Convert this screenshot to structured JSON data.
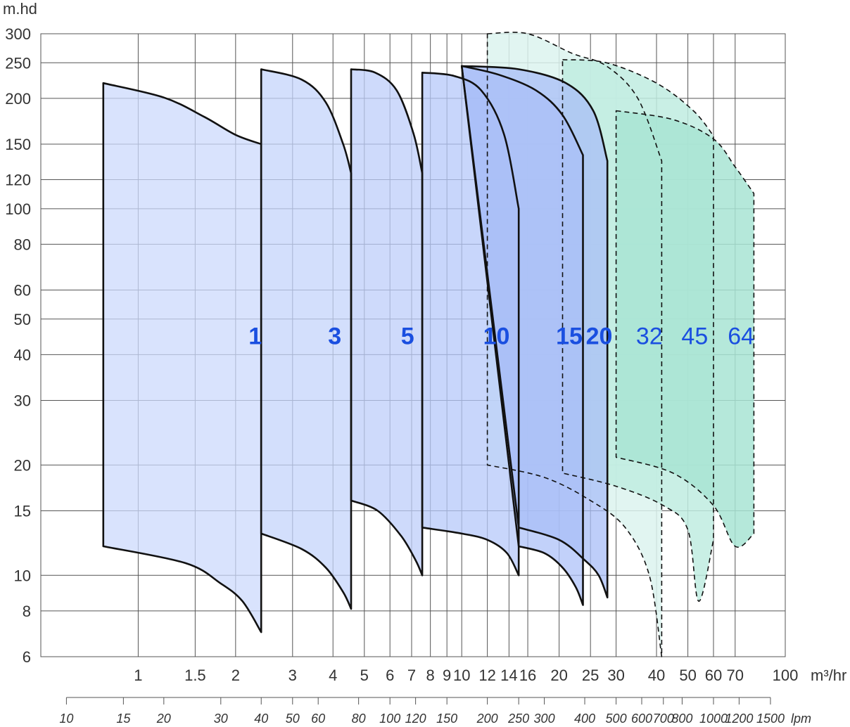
{
  "chart_data": {
    "type": "area",
    "y_unit_label": "m.hd",
    "x_unit_label": "m³/hr",
    "x2_unit_label": "lpm",
    "y_scale": "log",
    "x_scale": "log",
    "ylim": [
      6,
      300
    ],
    "xlim": [
      0.5,
      100
    ],
    "y_ticks": [
      6,
      8,
      10,
      15,
      20,
      30,
      40,
      50,
      60,
      80,
      100,
      120,
      150,
      200,
      250,
      300
    ],
    "x_ticks": [
      1,
      1.5,
      2,
      3,
      4,
      5,
      6,
      7,
      8,
      9,
      10,
      12,
      14,
      16,
      20,
      25,
      30,
      40,
      50,
      60,
      70,
      100
    ],
    "x_tick_labels": [
      "1",
      "1.5",
      "2",
      "3",
      "4",
      "5",
      "6",
      "7",
      "8",
      "9",
      "10",
      "12",
      "14",
      "16",
      "20",
      "25",
      "30",
      "40",
      "50",
      "60",
      "70",
      "100"
    ],
    "x2_ticks": [
      10,
      15,
      20,
      30,
      40,
      50,
      60,
      80,
      100,
      120,
      150,
      200,
      250,
      300,
      400,
      500,
      600,
      700,
      800,
      1000,
      1200,
      1500
    ],
    "x2_tick_labels": [
      "10",
      "15",
      "20",
      "30",
      "40",
      "50",
      "60",
      "80",
      "100",
      "120",
      "150",
      "200",
      "250",
      "300",
      "400",
      "500",
      "600",
      "700",
      "800",
      "1000",
      "1200",
      "1500"
    ],
    "grid": true,
    "series": [
      {
        "name": "1",
        "style": "solid",
        "color": "#ccdafc",
        "label_pos": [
          2.3,
          45
        ],
        "top": [
          [
            0.78,
            220
          ],
          [
            1.2,
            201
          ],
          [
            1.6,
            178
          ],
          [
            2.0,
            159
          ],
          [
            2.4,
            150
          ]
        ],
        "bottom": [
          [
            0.78,
            12
          ],
          [
            1.4,
            10.8
          ],
          [
            1.8,
            9.5
          ],
          [
            2.1,
            8.5
          ],
          [
            2.4,
            7
          ]
        ]
      },
      {
        "name": "3",
        "style": "solid",
        "color": "#c4d4fb",
        "label_pos": [
          4.05,
          45
        ],
        "top": [
          [
            2.4,
            240
          ],
          [
            3.2,
            225
          ],
          [
            3.8,
            195
          ],
          [
            4.3,
            150
          ],
          [
            4.55,
            125
          ]
        ],
        "bottom": [
          [
            2.4,
            13
          ],
          [
            3.2,
            11.8
          ],
          [
            3.8,
            10.5
          ],
          [
            4.3,
            9
          ],
          [
            4.55,
            8.1
          ]
        ]
      },
      {
        "name": "5",
        "style": "solid",
        "color": "#bdcefa",
        "label_pos": [
          6.8,
          45
        ],
        "top": [
          [
            4.55,
            240
          ],
          [
            5.4,
            235
          ],
          [
            6.3,
            210
          ],
          [
            7.1,
            160
          ],
          [
            7.55,
            125
          ]
        ],
        "bottom": [
          [
            4.55,
            16
          ],
          [
            5.5,
            15
          ],
          [
            6.5,
            12.8
          ],
          [
            7.2,
            11
          ],
          [
            7.55,
            10
          ]
        ]
      },
      {
        "name": "10",
        "style": "solid",
        "color": "#b5c8f9",
        "label_pos": [
          12.8,
          45
        ],
        "top": [
          [
            7.55,
            235
          ],
          [
            9.5,
            230
          ],
          [
            11.5,
            210
          ],
          [
            13.5,
            160
          ],
          [
            15,
            100
          ]
        ],
        "bottom": [
          [
            7.55,
            13.5
          ],
          [
            10,
            13
          ],
          [
            12,
            12.5
          ],
          [
            13.8,
            11.5
          ],
          [
            15,
            10
          ]
        ]
      },
      {
        "name": "15",
        "style": "solid",
        "color": "#aec2f8",
        "label_pos": [
          21.5,
          45
        ],
        "top": [
          [
            10,
            245
          ],
          [
            13,
            232
          ],
          [
            17,
            210
          ],
          [
            20.5,
            180
          ],
          [
            23.7,
            140
          ]
        ],
        "bottom": [
          [
            15,
            12
          ],
          [
            18,
            11.5
          ],
          [
            20.5,
            10.5
          ],
          [
            22.5,
            9.3
          ],
          [
            23.7,
            8.3
          ]
        ]
      },
      {
        "name": "20",
        "style": "solid",
        "color": "#a8bdf7",
        "label_pos": [
          26.6,
          45
        ],
        "top": [
          [
            10,
            245
          ],
          [
            15,
            240
          ],
          [
            21,
            220
          ],
          [
            25.5,
            185
          ],
          [
            28.2,
            135
          ]
        ],
        "bottom": [
          [
            15,
            13.5
          ],
          [
            20,
            12.5
          ],
          [
            24,
            11
          ],
          [
            26.5,
            10
          ],
          [
            28.2,
            8.7
          ]
        ]
      },
      {
        "name": "32",
        "style": "dashed",
        "color": "#dcf3ee",
        "label_pos": [
          38,
          45
        ],
        "top": [
          [
            12,
            300
          ],
          [
            16,
            300
          ],
          [
            22,
            265
          ],
          [
            28,
            245
          ],
          [
            35,
            200
          ],
          [
            41.5,
            135
          ]
        ],
        "bottom": [
          [
            12,
            20
          ],
          [
            18,
            18.5
          ],
          [
            25,
            16
          ],
          [
            32,
            13.5
          ],
          [
            38,
            10
          ],
          [
            41.5,
            6
          ]
        ]
      },
      {
        "name": "45",
        "style": "dashed",
        "color": "#c0ece0",
        "label_pos": [
          52.5,
          45
        ],
        "top": [
          [
            20.5,
            255
          ],
          [
            28,
            250
          ],
          [
            40,
            220
          ],
          [
            52,
            185
          ],
          [
            60,
            158
          ]
        ],
        "bottom": [
          [
            20.5,
            19
          ],
          [
            30,
            17.5
          ],
          [
            42,
            15.5
          ],
          [
            50,
            13.3
          ],
          [
            54,
            8.5
          ],
          [
            60,
            12.5
          ]
        ]
      },
      {
        "name": "64",
        "style": "dashed",
        "color": "#a8e4d3",
        "label_pos": [
          73,
          45
        ],
        "top": [
          [
            30,
            185
          ],
          [
            45,
            175
          ],
          [
            60,
            155
          ],
          [
            70,
            130
          ],
          [
            80,
            110
          ]
        ],
        "bottom": [
          [
            30,
            21
          ],
          [
            45,
            19
          ],
          [
            60,
            15.5
          ],
          [
            70,
            12
          ],
          [
            80,
            13
          ]
        ]
      }
    ]
  }
}
